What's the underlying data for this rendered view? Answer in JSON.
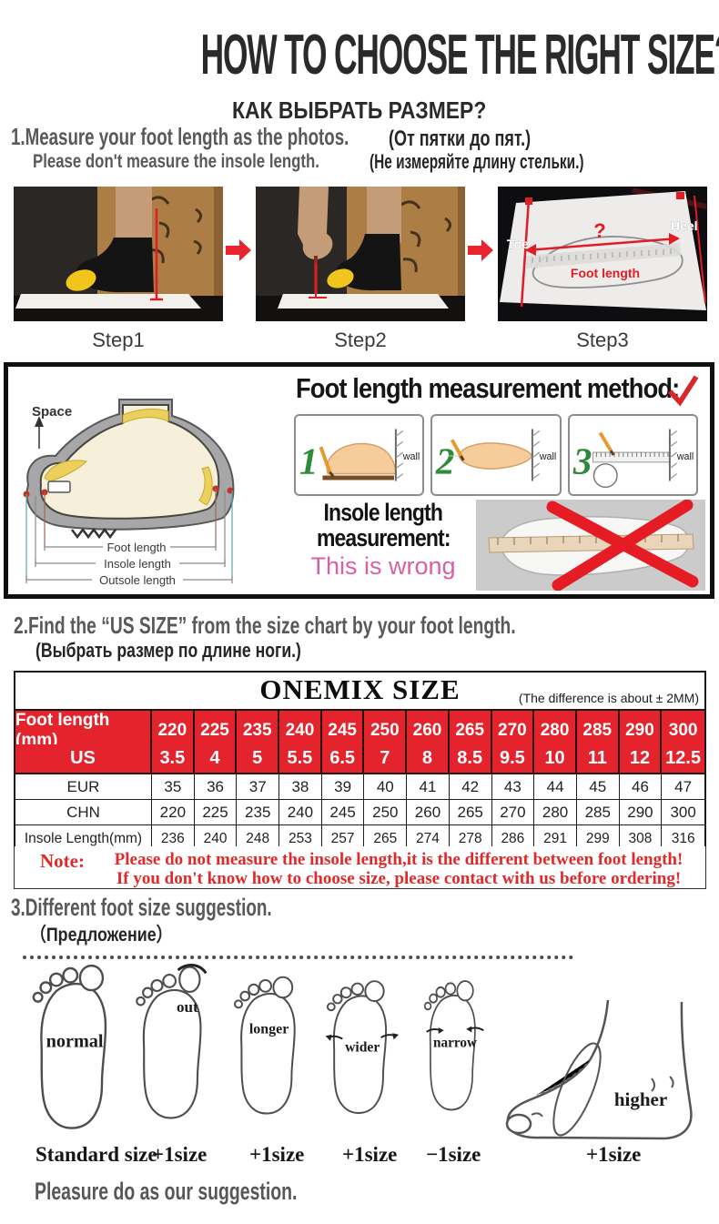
{
  "title": "HOW TO CHOOSE THE RIGHT SIZE?",
  "subtitle": "КАК ВЫБРАТЬ РАЗМЕР?",
  "section1": {
    "heading_en": "1.Measure your foot length as the photos.",
    "heading_ru": "(От пятки до пят.)",
    "sub_en": "Please don't measure the insole length.",
    "sub_ru": "(Не измеряйте длину стельки.)",
    "steps": [
      "Step1",
      "Step2",
      "Step3"
    ],
    "photo3_labels": {
      "toe": "Toe",
      "heel": "Heel",
      "question": "?",
      "foot_length": "Foot length"
    }
  },
  "method_box": {
    "space": "Space",
    "dims": [
      "Foot length",
      "Insole length",
      "Outsole length"
    ],
    "title": "Foot length measurement method:",
    "panel_numbers": [
      "1",
      "2",
      "3"
    ],
    "wall": "wall",
    "insole_line1": "Insole length",
    "insole_line2": "measurement:",
    "wrong": "This is wrong"
  },
  "section2": {
    "heading_en": "2.Find the “US SIZE” from the size chart by your foot length.",
    "heading_ru": "(Выбрать размер по длине ноги.)",
    "table": {
      "title": "ONEMIX SIZE",
      "tolerance": "(The difference is about ± 2MM)",
      "rows": [
        {
          "label": "Foot length (mm)",
          "highlight": true,
          "values": [
            "220",
            "225",
            "235",
            "240",
            "245",
            "250",
            "260",
            "265",
            "270",
            "280",
            "285",
            "290",
            "300"
          ]
        },
        {
          "label": "US",
          "highlight": true,
          "values": [
            "3.5",
            "4",
            "5",
            "5.5",
            "6.5",
            "7",
            "8",
            "8.5",
            "9.5",
            "10",
            "11",
            "12",
            "12.5"
          ]
        },
        {
          "label": "EUR",
          "highlight": false,
          "values": [
            "35",
            "36",
            "37",
            "38",
            "39",
            "40",
            "41",
            "42",
            "43",
            "44",
            "45",
            "46",
            "47"
          ]
        },
        {
          "label": "CHN",
          "highlight": false,
          "values": [
            "220",
            "225",
            "235",
            "240",
            "245",
            "250",
            "260",
            "265",
            "270",
            "280",
            "285",
            "290",
            "300"
          ]
        },
        {
          "label": "Insole Length(mm)",
          "highlight": false,
          "values": [
            "236",
            "240",
            "248",
            "253",
            "257",
            "265",
            "274",
            "278",
            "286",
            "291",
            "299",
            "308",
            "316"
          ]
        }
      ]
    },
    "note_label": "Note:",
    "note_line1": "Please do not measure the insole length,it is the different between foot length!",
    "note_line2": "If you don't know how to choose size, please contact with us before ordering!"
  },
  "section3": {
    "heading_en": "3.Different foot size suggestion.",
    "heading_ru": "（Предложение）",
    "feet": [
      {
        "label": "normal",
        "size": "Standard size"
      },
      {
        "label": "out",
        "size": "+1size"
      },
      {
        "label": "longer",
        "size": "+1size"
      },
      {
        "label": "wider",
        "size": "+1size"
      },
      {
        "label": "narrow",
        "size": "−1size"
      },
      {
        "label": "higher",
        "size": "+1size"
      }
    ],
    "footer": "Pleasure do as our suggestion."
  },
  "colors": {
    "table_red": "#e4232d",
    "heading_gray": "#58595b",
    "note_red": "#e02a2a",
    "wrong_pink": "#d95fa4",
    "accent_red": "#e8252d",
    "green_number": "#2e8b3a",
    "cardboard": "#ac7d44"
  }
}
